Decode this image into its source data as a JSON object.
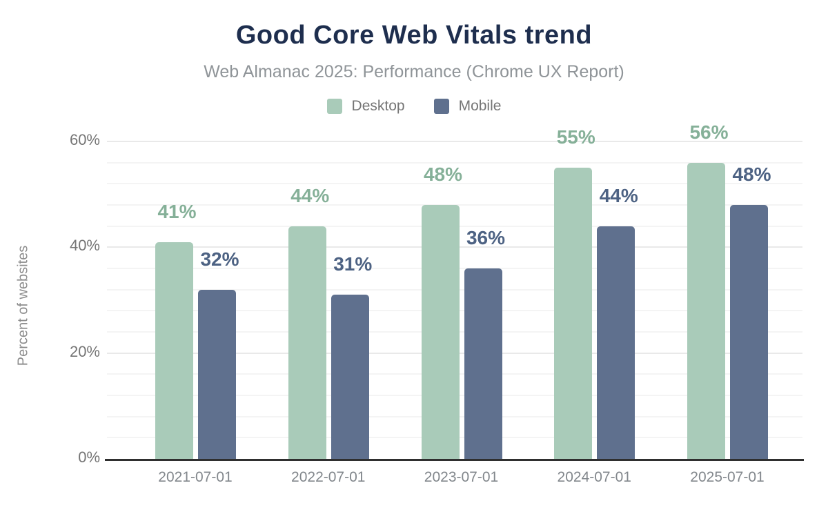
{
  "chart": {
    "title": "Good Core Web Vitals trend",
    "subtitle": "Web Almanac 2025: Performance (Chrome UX Report)",
    "y_axis_title": "Percent of websites"
  },
  "chart_data": {
    "type": "bar",
    "title": "Good Core Web Vitals trend",
    "subtitle": "Web Almanac 2025: Performance (Chrome UX Report)",
    "categories": [
      "2021-07-01",
      "2022-07-01",
      "2023-07-01",
      "2024-07-01",
      "2025-07-01"
    ],
    "series": [
      {
        "name": "Desktop",
        "values": [
          41,
          44,
          48,
          55,
          56
        ],
        "data_labels": [
          "41%",
          "44%",
          "48%",
          "55%",
          "56%"
        ],
        "bar_color": "#a9cbb9",
        "label_color": "#85b098"
      },
      {
        "name": "Mobile",
        "values": [
          32,
          31,
          36,
          44,
          48
        ],
        "data_labels": [
          "32%",
          "31%",
          "36%",
          "44%",
          "48%"
        ],
        "bar_color": "#5f708e",
        "label_color": "#4d6283"
      }
    ],
    "xlabel": "",
    "ylabel": "Percent of websites",
    "ylim": [
      0,
      60
    ],
    "yticks": [
      {
        "value": 0,
        "label": "0%"
      },
      {
        "value": 20,
        "label": "20%"
      },
      {
        "value": 40,
        "label": "40%"
      },
      {
        "value": 60,
        "label": "60%"
      }
    ],
    "grid": "horizontal minor gridlines every 4%, major every 20%",
    "legend_position": "top-center"
  },
  "colors": {
    "title": "#1e2e4e",
    "subtitle": "#8f9498",
    "axis_line": "#2f2f2f",
    "tick_text": "#757575",
    "gridline_minor": "#f4f4f4",
    "gridline_major": "#e9e9e9"
  }
}
